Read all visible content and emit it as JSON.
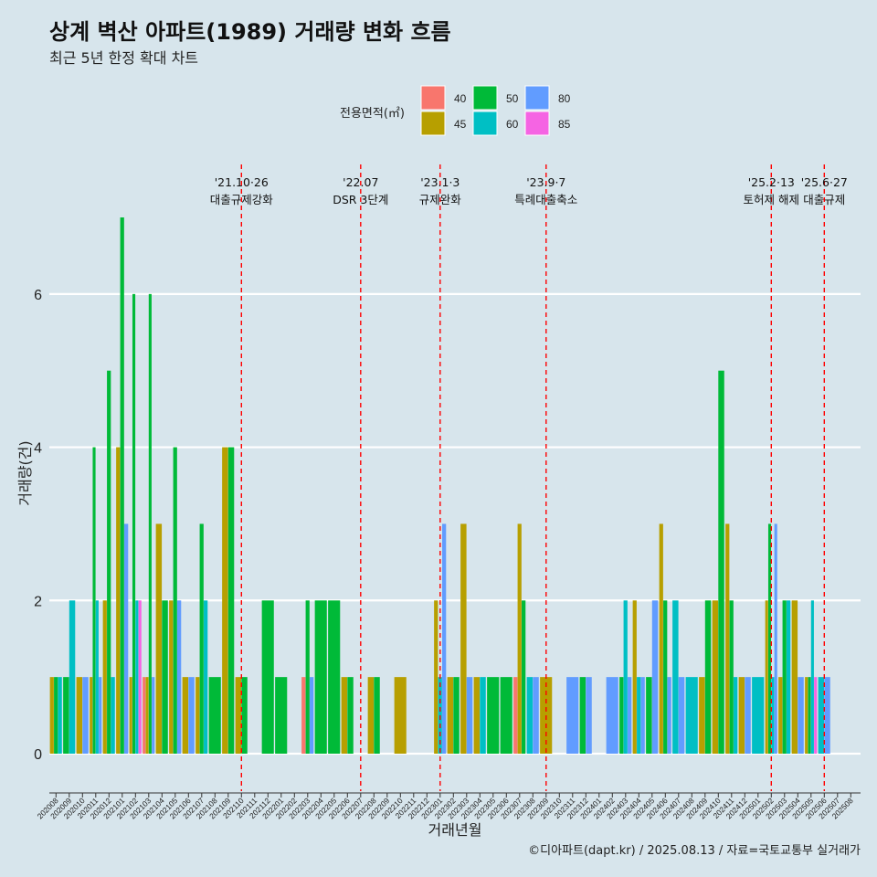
{
  "title": "상계 벽산 아파트(1989) 거래량 변화 흐름",
  "subtitle": "최근 5년 한정 확대 차트",
  "caption": "©디아파트(dapt.kr) / 2025.08.13 / 자료=국토교통부 실거래가",
  "chart_data": {
    "type": "bar",
    "xlabel": "거래년월",
    "ylabel": "거래량(건)",
    "ylim": [
      -0.25,
      7.2
    ],
    "yticks": [
      0,
      2,
      4,
      6
    ],
    "grid": true,
    "legend": {
      "title": "전용면적(㎡)",
      "position": "top",
      "entries": [
        {
          "name": "40",
          "color": "#F8766D"
        },
        {
          "name": "45",
          "color": "#B79F00"
        },
        {
          "name": "50",
          "color": "#00BA38"
        },
        {
          "name": "60",
          "color": "#00BFC4"
        },
        {
          "name": "80",
          "color": "#619CFF"
        },
        {
          "name": "85",
          "color": "#F564E3"
        }
      ]
    },
    "months": [
      "202008",
      "202009",
      "202010",
      "202011",
      "202012",
      "202101",
      "202102",
      "202103",
      "202104",
      "202105",
      "202106",
      "202107",
      "202108",
      "202109",
      "202110",
      "202111",
      "202112",
      "202201",
      "202202",
      "202203",
      "202204",
      "202205",
      "202206",
      "202207",
      "202208",
      "202209",
      "202210",
      "202211",
      "202212",
      "202301",
      "202302",
      "202303",
      "202304",
      "202305",
      "202306",
      "202307",
      "202308",
      "202309",
      "202310",
      "202311",
      "202312",
      "202401",
      "202402",
      "202403",
      "202404",
      "202405",
      "202406",
      "202407",
      "202408",
      "202409",
      "202410",
      "202411",
      "202412",
      "202501",
      "202502",
      "202503",
      "202504",
      "202505",
      "202506",
      "202507",
      "202508"
    ],
    "data": [
      {
        "month": "202008",
        "values": {
          "45": 1,
          "50": 1,
          "60": 1
        }
      },
      {
        "month": "202009",
        "values": {
          "50": 1,
          "60": 2
        }
      },
      {
        "month": "202010",
        "values": {
          "45": 1,
          "80": 1
        }
      },
      {
        "month": "202011",
        "values": {
          "45": 1,
          "50": 4,
          "60": 2,
          "80": 1
        }
      },
      {
        "month": "202012",
        "values": {
          "45": 2,
          "50": 5,
          "60": 1
        }
      },
      {
        "month": "202101",
        "values": {
          "45": 4,
          "50": 7,
          "80": 3
        }
      },
      {
        "month": "202102",
        "values": {
          "85": 2,
          "45": 1,
          "50": 6,
          "60": 2
        }
      },
      {
        "month": "202103",
        "values": {
          "40": 1,
          "45": 1,
          "50": 6,
          "80": 1
        }
      },
      {
        "month": "202104",
        "values": {
          "45": 3,
          "50": 2
        }
      },
      {
        "month": "202105",
        "values": {
          "45": 2,
          "50": 4,
          "80": 2
        }
      },
      {
        "month": "202106",
        "values": {
          "45": 1,
          "80": 1
        }
      },
      {
        "month": "202107",
        "values": {
          "45": 1,
          "50": 3,
          "60": 2
        }
      },
      {
        "month": "202108",
        "values": {
          "50": 1
        }
      },
      {
        "month": "202109",
        "values": {
          "45": 4,
          "50": 4
        }
      },
      {
        "month": "202110",
        "values": {
          "45": 1,
          "50": 1
        }
      },
      {
        "month": "202111",
        "values": {}
      },
      {
        "month": "202112",
        "values": {
          "50": 2
        }
      },
      {
        "month": "202201",
        "values": {
          "50": 1
        }
      },
      {
        "month": "202202",
        "values": {}
      },
      {
        "month": "202203",
        "values": {
          "40": 1,
          "50": 2,
          "80": 1
        }
      },
      {
        "month": "202204",
        "values": {
          "50": 2
        }
      },
      {
        "month": "202205",
        "values": {
          "50": 2
        }
      },
      {
        "month": "202206",
        "values": {
          "45": 1,
          "50": 1
        }
      },
      {
        "month": "202207",
        "values": {}
      },
      {
        "month": "202208",
        "values": {
          "45": 1,
          "50": 1
        }
      },
      {
        "month": "202209",
        "values": {}
      },
      {
        "month": "202210",
        "values": {
          "45": 1
        }
      },
      {
        "month": "202211",
        "values": {}
      },
      {
        "month": "202212",
        "values": {}
      },
      {
        "month": "202301",
        "values": {
          "45": 2,
          "60": 1,
          "80": 3
        }
      },
      {
        "month": "202302",
        "values": {
          "45": 1,
          "50": 1
        }
      },
      {
        "month": "202303",
        "values": {
          "45": 3,
          "80": 1
        }
      },
      {
        "month": "202304",
        "values": {
          "45": 1,
          "60": 1
        }
      },
      {
        "month": "202305",
        "values": {
          "50": 1
        }
      },
      {
        "month": "202306",
        "values": {
          "50": 1
        }
      },
      {
        "month": "202307",
        "values": {
          "40": 1,
          "45": 3,
          "50": 2
        }
      },
      {
        "month": "202308",
        "values": {
          "60": 1,
          "80": 1
        }
      },
      {
        "month": "202309",
        "values": {
          "45": 1
        }
      },
      {
        "month": "202310",
        "values": {}
      },
      {
        "month": "202311",
        "values": {
          "80": 1
        }
      },
      {
        "month": "202312",
        "values": {
          "50": 1,
          "80": 1
        }
      },
      {
        "month": "202401",
        "values": {}
      },
      {
        "month": "202402",
        "values": {
          "80": 1
        }
      },
      {
        "month": "202403",
        "values": {
          "50": 1,
          "60": 2,
          "80": 1
        }
      },
      {
        "month": "202404",
        "values": {
          "45": 2,
          "60": 1,
          "80": 1
        }
      },
      {
        "month": "202405",
        "values": {
          "50": 1,
          "80": 2
        }
      },
      {
        "month": "202406",
        "values": {
          "45": 3,
          "50": 2,
          "80": 1
        }
      },
      {
        "month": "202407",
        "values": {
          "60": 2,
          "80": 1
        }
      },
      {
        "month": "202408",
        "values": {
          "60": 1
        }
      },
      {
        "month": "202409",
        "values": {
          "45": 1,
          "50": 2
        }
      },
      {
        "month": "202410",
        "values": {
          "45": 2,
          "50": 5
        }
      },
      {
        "month": "202411",
        "values": {
          "45": 3,
          "50": 2,
          "60": 1
        }
      },
      {
        "month": "202412",
        "values": {
          "45": 1,
          "80": 1
        }
      },
      {
        "month": "202501",
        "values": {
          "60": 1
        }
      },
      {
        "month": "202502",
        "values": {
          "45": 2,
          "50": 3,
          "60": 1,
          "80": 3
        }
      },
      {
        "month": "202503",
        "values": {
          "45": 1,
          "50": 2,
          "60": 2
        }
      },
      {
        "month": "202504",
        "values": {
          "45": 2,
          "80": 1
        }
      },
      {
        "month": "202505",
        "values": {
          "85": 1,
          "45": 1,
          "50": 1,
          "60": 2
        }
      },
      {
        "month": "202506",
        "values": {
          "60": 1,
          "80": 1
        }
      },
      {
        "month": "202507",
        "values": {}
      },
      {
        "month": "202508",
        "values": {}
      }
    ],
    "annotations": [
      {
        "month": "202110",
        "date": "'21.10·26",
        "label": "대출규제강화"
      },
      {
        "month": "202207",
        "date": "'22.07",
        "label": "DSR 3단계"
      },
      {
        "month": "202301",
        "date": "'23.1·3",
        "label": "규제완화"
      },
      {
        "month": "202309",
        "date": "'23.9·7",
        "label": "특례대출축소"
      },
      {
        "month": "202502",
        "date": "'25.2·13",
        "label": "토허제 해제"
      },
      {
        "month": "202506",
        "date": "'25.6·27",
        "label": "대출규제"
      }
    ]
  }
}
